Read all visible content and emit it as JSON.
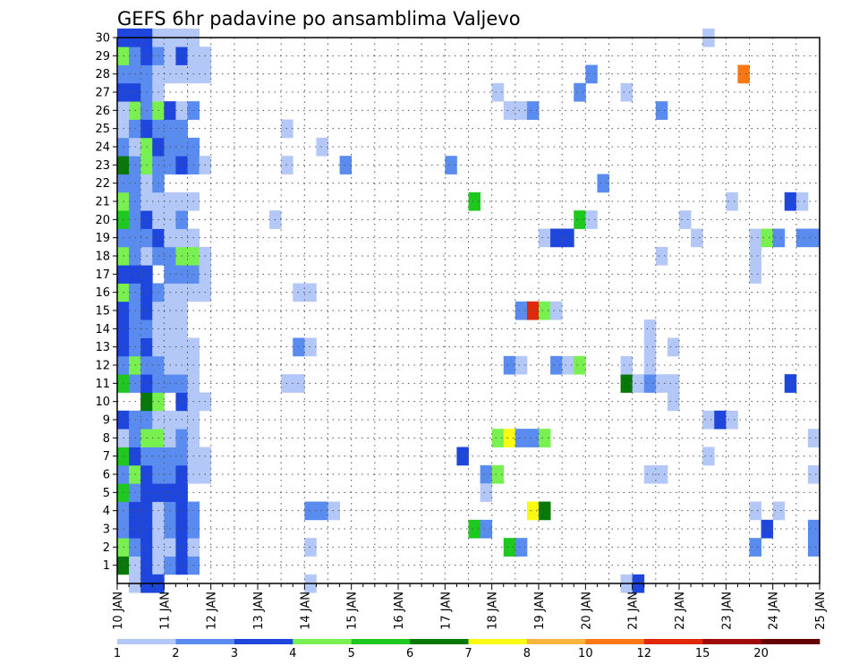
{
  "chart_data": {
    "type": "heatmap",
    "title": "GEFS 6hr padavine po ansamblima Valjevo",
    "xlabel": "",
    "ylabel": "",
    "x_tick_labels": [
      "10 JAN",
      "11 JAN",
      "12 JAN",
      "13 JAN",
      "14 JAN",
      "15 JAN",
      "16 JAN",
      "17 JAN",
      "18 JAN",
      "19 JAN",
      "20 JAN",
      "21 JAN",
      "22 JAN",
      "23 JAN",
      "24 JAN",
      "25 JAN"
    ],
    "y_tick_labels": [
      "1",
      "2",
      "3",
      "4",
      "5",
      "6",
      "7",
      "8",
      "9",
      "10",
      "11",
      "12",
      "13",
      "14",
      "15",
      "16",
      "17",
      "18",
      "19",
      "20",
      "21",
      "22",
      "23",
      "24",
      "25",
      "26",
      "27",
      "28",
      "29",
      "30"
    ],
    "x_range_days": [
      10,
      25
    ],
    "y_range_members": [
      0,
      30
    ],
    "time_step_hours": 6,
    "grid": "dotted",
    "legend": {
      "position": "bottom",
      "levels": [
        "1",
        "2",
        "3",
        "4",
        "5",
        "6",
        "7",
        "8",
        "10",
        "12",
        "15",
        "20"
      ],
      "colors": [
        "#b4c8f8",
        "#5a8cf0",
        "#1e46dc",
        "#78f050",
        "#1ec81e",
        "#087808",
        "#fafa14",
        "#fab43c",
        "#fa7814",
        "#e1280a",
        "#a00a0a",
        "#640000"
      ]
    },
    "cells_note": "each cell: [day (time), ensemble member, colour class index 0-11]",
    "cells": [
      [
        10.0,
        1,
        5
      ],
      [
        10.25,
        1,
        0
      ],
      [
        10.5,
        1,
        2
      ],
      [
        10.75,
        1,
        0
      ],
      [
        11.0,
        1,
        1
      ],
      [
        11.25,
        1,
        2
      ],
      [
        11.5,
        1,
        1
      ],
      [
        10.0,
        2,
        3
      ],
      [
        10.25,
        2,
        1
      ],
      [
        10.5,
        2,
        2
      ],
      [
        10.75,
        2,
        0
      ],
      [
        11.0,
        2,
        0
      ],
      [
        11.25,
        2,
        2
      ],
      [
        11.5,
        2,
        0
      ],
      [
        10.0,
        3,
        1
      ],
      [
        10.25,
        3,
        2
      ],
      [
        10.5,
        3,
        2
      ],
      [
        10.75,
        3,
        0
      ],
      [
        11.0,
        3,
        1
      ],
      [
        11.25,
        3,
        2
      ],
      [
        11.5,
        3,
        1
      ],
      [
        10.0,
        4,
        1
      ],
      [
        10.25,
        4,
        2
      ],
      [
        10.5,
        4,
        2
      ],
      [
        10.75,
        4,
        0
      ],
      [
        11.0,
        4,
        1
      ],
      [
        11.25,
        4,
        2
      ],
      [
        11.5,
        4,
        1
      ],
      [
        10.0,
        5,
        4
      ],
      [
        10.25,
        5,
        1
      ],
      [
        10.5,
        5,
        2
      ],
      [
        10.75,
        5,
        2
      ],
      [
        11.0,
        5,
        2
      ],
      [
        11.25,
        5,
        2
      ],
      [
        10.0,
        6,
        1
      ],
      [
        10.25,
        6,
        3
      ],
      [
        10.5,
        6,
        2
      ],
      [
        10.75,
        6,
        1
      ],
      [
        11.0,
        6,
        1
      ],
      [
        11.25,
        6,
        2
      ],
      [
        11.5,
        6,
        0
      ],
      [
        11.75,
        6,
        0
      ],
      [
        10.0,
        7,
        4
      ],
      [
        10.25,
        7,
        2
      ],
      [
        10.5,
        7,
        1
      ],
      [
        10.75,
        7,
        1
      ],
      [
        11.0,
        7,
        1
      ],
      [
        11.25,
        7,
        1
      ],
      [
        11.5,
        7,
        0
      ],
      [
        11.75,
        7,
        0
      ],
      [
        10.0,
        8,
        0
      ],
      [
        10.25,
        8,
        1
      ],
      [
        10.5,
        8,
        3
      ],
      [
        10.75,
        8,
        3
      ],
      [
        11.0,
        8,
        0
      ],
      [
        11.25,
        8,
        1
      ],
      [
        11.5,
        8,
        0
      ],
      [
        10.0,
        9,
        2
      ],
      [
        10.25,
        9,
        1
      ],
      [
        10.5,
        9,
        1
      ],
      [
        10.75,
        9,
        0
      ],
      [
        11.0,
        9,
        0
      ],
      [
        11.25,
        9,
        0
      ],
      [
        11.5,
        9,
        0
      ],
      [
        10.5,
        10,
        5
      ],
      [
        10.75,
        10,
        3
      ],
      [
        11.25,
        10,
        2
      ],
      [
        11.5,
        10,
        0
      ],
      [
        11.75,
        10,
        0
      ],
      [
        10.0,
        11,
        4
      ],
      [
        10.25,
        11,
        1
      ],
      [
        10.5,
        11,
        2
      ],
      [
        10.75,
        11,
        1
      ],
      [
        11.0,
        11,
        1
      ],
      [
        11.25,
        11,
        1
      ],
      [
        11.5,
        11,
        0
      ],
      [
        10.0,
        12,
        1
      ],
      [
        10.25,
        12,
        3
      ],
      [
        10.5,
        12,
        1
      ],
      [
        10.75,
        12,
        1
      ],
      [
        11.0,
        12,
        0
      ],
      [
        11.25,
        12,
        0
      ],
      [
        11.5,
        12,
        0
      ],
      [
        10.0,
        13,
        2
      ],
      [
        10.25,
        13,
        1
      ],
      [
        10.5,
        13,
        2
      ],
      [
        10.75,
        13,
        0
      ],
      [
        11.0,
        13,
        0
      ],
      [
        11.25,
        13,
        0
      ],
      [
        11.5,
        13,
        0
      ],
      [
        10.0,
        14,
        2
      ],
      [
        10.25,
        14,
        1
      ],
      [
        10.5,
        14,
        1
      ],
      [
        10.75,
        14,
        0
      ],
      [
        11.0,
        14,
        0
      ],
      [
        11.25,
        14,
        0
      ],
      [
        10.0,
        15,
        2
      ],
      [
        10.25,
        15,
        1
      ],
      [
        10.5,
        15,
        2
      ],
      [
        10.75,
        15,
        0
      ],
      [
        11.0,
        15,
        0
      ],
      [
        11.25,
        15,
        0
      ],
      [
        10.0,
        16,
        3
      ],
      [
        10.25,
        16,
        1
      ],
      [
        10.5,
        16,
        2
      ],
      [
        10.75,
        16,
        1
      ],
      [
        11.0,
        16,
        0
      ],
      [
        11.25,
        16,
        0
      ],
      [
        11.5,
        16,
        0
      ],
      [
        11.75,
        16,
        0
      ],
      [
        10.0,
        17,
        2
      ],
      [
        10.25,
        17,
        2
      ],
      [
        10.5,
        17,
        2
      ],
      [
        11.0,
        17,
        1
      ],
      [
        11.25,
        17,
        1
      ],
      [
        11.5,
        17,
        1
      ],
      [
        11.75,
        17,
        0
      ],
      [
        10.0,
        18,
        3
      ],
      [
        10.25,
        18,
        1
      ],
      [
        10.5,
        18,
        0
      ],
      [
        10.75,
        18,
        1
      ],
      [
        11.0,
        18,
        1
      ],
      [
        11.25,
        18,
        3
      ],
      [
        11.5,
        18,
        3
      ],
      [
        11.75,
        18,
        0
      ],
      [
        10.0,
        19,
        1
      ],
      [
        10.25,
        19,
        1
      ],
      [
        10.5,
        19,
        1
      ],
      [
        10.75,
        19,
        2
      ],
      [
        11.0,
        19,
        0
      ],
      [
        11.25,
        19,
        0
      ],
      [
        11.5,
        19,
        0
      ],
      [
        10.0,
        20,
        4
      ],
      [
        10.25,
        20,
        1
      ],
      [
        10.5,
        20,
        2
      ],
      [
        10.75,
        20,
        0
      ],
      [
        11.0,
        20,
        0
      ],
      [
        11.25,
        20,
        1
      ],
      [
        10.0,
        21,
        3
      ],
      [
        10.25,
        21,
        1
      ],
      [
        10.5,
        21,
        0
      ],
      [
        10.75,
        21,
        0
      ],
      [
        11.0,
        21,
        0
      ],
      [
        11.25,
        21,
        0
      ],
      [
        11.5,
        21,
        0
      ],
      [
        10.0,
        22,
        1
      ],
      [
        10.25,
        22,
        1
      ],
      [
        10.5,
        22,
        0
      ],
      [
        10.75,
        22,
        1
      ],
      [
        10.0,
        23,
        5
      ],
      [
        10.25,
        23,
        1
      ],
      [
        10.5,
        23,
        3
      ],
      [
        10.75,
        23,
        1
      ],
      [
        11.0,
        23,
        1
      ],
      [
        11.25,
        23,
        2
      ],
      [
        11.5,
        23,
        1
      ],
      [
        11.75,
        23,
        0
      ],
      [
        10.0,
        24,
        1
      ],
      [
        10.25,
        24,
        0
      ],
      [
        10.5,
        24,
        3
      ],
      [
        10.75,
        24,
        2
      ],
      [
        11.0,
        24,
        1
      ],
      [
        11.25,
        24,
        1
      ],
      [
        11.5,
        24,
        1
      ],
      [
        10.0,
        25,
        0
      ],
      [
        10.25,
        25,
        1
      ],
      [
        10.5,
        25,
        2
      ],
      [
        10.75,
        25,
        1
      ],
      [
        11.0,
        25,
        1
      ],
      [
        11.25,
        25,
        1
      ],
      [
        10.0,
        26,
        0
      ],
      [
        10.25,
        26,
        3
      ],
      [
        10.5,
        26,
        1
      ],
      [
        10.75,
        26,
        3
      ],
      [
        11.0,
        26,
        2
      ],
      [
        11.25,
        26,
        0
      ],
      [
        11.5,
        26,
        1
      ],
      [
        10.0,
        27,
        2
      ],
      [
        10.25,
        27,
        2
      ],
      [
        10.5,
        27,
        1
      ],
      [
        10.75,
        27,
        0
      ],
      [
        10.0,
        28,
        1
      ],
      [
        10.25,
        28,
        1
      ],
      [
        10.5,
        28,
        1
      ],
      [
        10.75,
        28,
        0
      ],
      [
        11.0,
        28,
        0
      ],
      [
        11.25,
        28,
        0
      ],
      [
        11.5,
        28,
        0
      ],
      [
        11.75,
        28,
        0
      ],
      [
        10.0,
        29,
        3
      ],
      [
        10.25,
        29,
        1
      ],
      [
        10.5,
        29,
        2
      ],
      [
        10.75,
        29,
        1
      ],
      [
        11.0,
        29,
        0
      ],
      [
        11.25,
        29,
        2
      ],
      [
        11.5,
        29,
        0
      ],
      [
        11.75,
        29,
        0
      ],
      [
        10.0,
        30,
        2
      ],
      [
        10.25,
        30,
        2
      ],
      [
        10.5,
        30,
        2
      ],
      [
        10.75,
        30,
        0
      ],
      [
        11.0,
        30,
        0
      ],
      [
        11.25,
        30,
        0
      ],
      [
        11.5,
        30,
        0
      ],
      [
        10.25,
        0,
        0
      ],
      [
        10.5,
        0,
        2
      ],
      [
        10.75,
        0,
        2
      ],
      [
        13.5,
        25,
        0
      ],
      [
        13.5,
        23,
        0
      ],
      [
        13.25,
        20,
        0
      ],
      [
        13.75,
        16,
        0
      ],
      [
        14.0,
        16,
        0
      ],
      [
        13.75,
        13,
        1
      ],
      [
        14.0,
        13,
        0
      ],
      [
        13.5,
        11,
        0
      ],
      [
        13.75,
        11,
        0
      ],
      [
        14.0,
        4,
        1
      ],
      [
        14.25,
        4,
        1
      ],
      [
        14.5,
        4,
        0
      ],
      [
        14.0,
        2,
        0
      ],
      [
        14.0,
        0,
        0
      ],
      [
        14.25,
        24,
        0
      ],
      [
        14.75,
        23,
        1
      ],
      [
        17.0,
        23,
        1
      ],
      [
        17.5,
        21,
        4
      ],
      [
        17.25,
        7,
        2
      ],
      [
        17.5,
        3,
        4
      ],
      [
        17.75,
        3,
        1
      ],
      [
        17.75,
        6,
        1
      ],
      [
        18.0,
        6,
        3
      ],
      [
        17.75,
        5,
        0
      ],
      [
        18.0,
        8,
        3
      ],
      [
        18.25,
        8,
        6
      ],
      [
        18.5,
        8,
        1
      ],
      [
        18.75,
        8,
        1
      ],
      [
        19.0,
        8,
        3
      ],
      [
        18.25,
        2,
        4
      ],
      [
        18.5,
        2,
        1
      ],
      [
        18.25,
        12,
        1
      ],
      [
        18.5,
        12,
        0
      ],
      [
        18.0,
        27,
        0
      ],
      [
        18.25,
        26,
        0
      ],
      [
        18.5,
        26,
        0
      ],
      [
        18.75,
        26,
        1
      ],
      [
        18.5,
        15,
        1
      ],
      [
        18.75,
        15,
        9
      ],
      [
        19.0,
        15,
        3
      ],
      [
        19.25,
        15,
        0
      ],
      [
        18.75,
        4,
        6
      ],
      [
        19.0,
        4,
        5
      ],
      [
        19.0,
        19,
        0
      ],
      [
        19.25,
        19,
        2
      ],
      [
        19.5,
        19,
        2
      ],
      [
        19.25,
        12,
        1
      ],
      [
        19.5,
        12,
        0
      ],
      [
        19.75,
        12,
        3
      ],
      [
        19.75,
        20,
        4
      ],
      [
        20.0,
        20,
        0
      ],
      [
        20.0,
        28,
        1
      ],
      [
        19.75,
        27,
        1
      ],
      [
        20.25,
        22,
        1
      ],
      [
        20.75,
        27,
        0
      ],
      [
        20.75,
        11,
        5
      ],
      [
        20.75,
        12,
        0
      ],
      [
        21.0,
        11,
        0
      ],
      [
        21.25,
        11,
        1
      ],
      [
        21.5,
        11,
        0
      ],
      [
        21.75,
        11,
        0
      ],
      [
        21.75,
        10,
        0
      ],
      [
        21.25,
        12,
        0
      ],
      [
        21.25,
        13,
        0
      ],
      [
        21.25,
        14,
        0
      ],
      [
        21.75,
        13,
        0
      ],
      [
        21.25,
        6,
        0
      ],
      [
        21.5,
        6,
        0
      ],
      [
        21.5,
        26,
        1
      ],
      [
        21.5,
        18,
        0
      ],
      [
        22.0,
        20,
        0
      ],
      [
        22.25,
        19,
        0
      ],
      [
        22.5,
        30,
        0
      ],
      [
        22.5,
        7,
        0
      ],
      [
        22.5,
        9,
        0
      ],
      [
        22.75,
        9,
        2
      ],
      [
        23.0,
        9,
        0
      ],
      [
        23.0,
        21,
        0
      ],
      [
        23.25,
        28,
        8
      ],
      [
        23.5,
        19,
        0
      ],
      [
        23.75,
        19,
        3
      ],
      [
        24.0,
        19,
        1
      ],
      [
        23.5,
        18,
        0
      ],
      [
        23.5,
        17,
        0
      ],
      [
        23.5,
        4,
        0
      ],
      [
        24.0,
        4,
        0
      ],
      [
        23.75,
        3,
        2
      ],
      [
        23.5,
        2,
        1
      ],
      [
        24.25,
        21,
        2
      ],
      [
        24.5,
        21,
        0
      ],
      [
        24.25,
        11,
        2
      ],
      [
        24.5,
        19,
        1
      ],
      [
        24.75,
        19,
        1
      ],
      [
        24.75,
        8,
        0
      ],
      [
        24.75,
        6,
        0
      ],
      [
        24.75,
        3,
        1
      ],
      [
        24.75,
        2,
        1
      ],
      [
        20.75,
        0,
        0
      ],
      [
        21.0,
        0,
        2
      ]
    ]
  }
}
